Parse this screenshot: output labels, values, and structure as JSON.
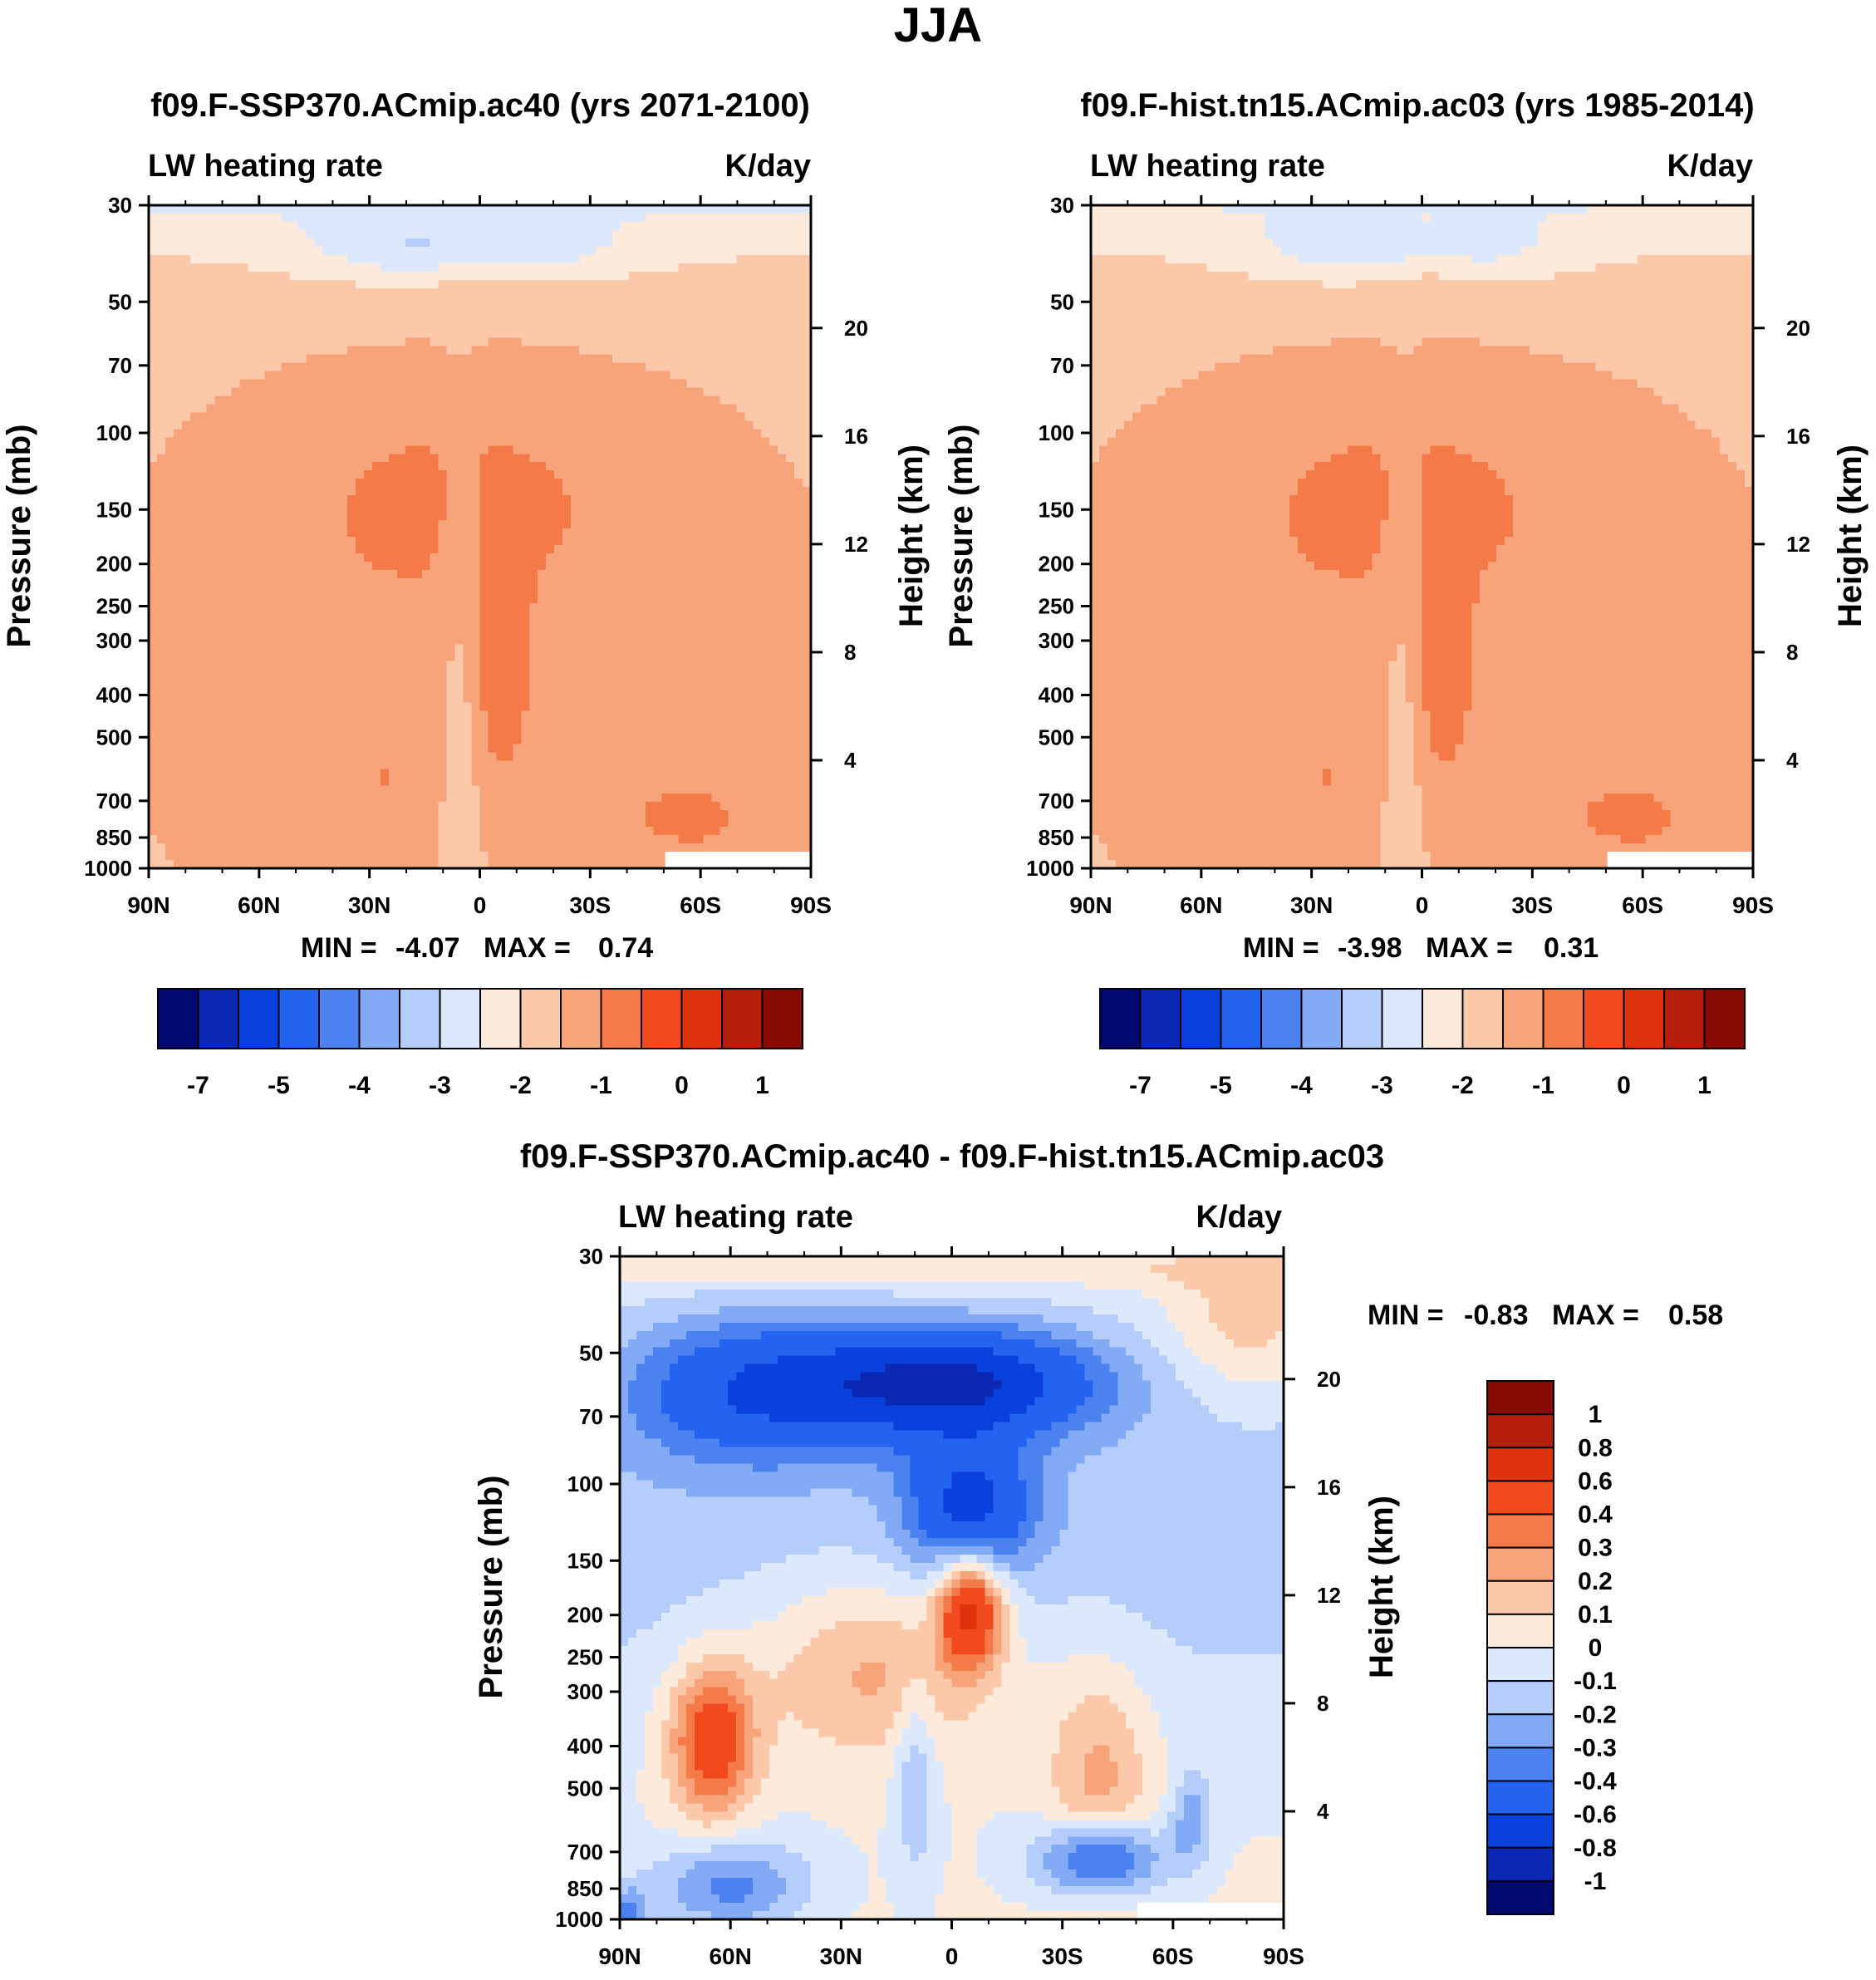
{
  "figure_title": "JJA",
  "colors": {
    "main_palette": [
      "#000a6e",
      "#0a28b4",
      "#0a41dc",
      "#2462f0",
      "#4b82f0",
      "#82aaf5",
      "#b4cdfa",
      "#dce9fc",
      "#fdeadb",
      "#fbc9aa",
      "#f8a47a",
      "#f47a4a",
      "#f04a1e",
      "#e0320c",
      "#b41e0a",
      "#870a05"
    ],
    "diff_palette": [
      "#000a6e",
      "#0a28b4",
      "#0a41dc",
      "#2462f0",
      "#4b82f0",
      "#82aaf5",
      "#b4cdfa",
      "#dce9fc",
      "#fdeadb",
      "#fbc9aa",
      "#f8a47a",
      "#f47a4a",
      "#f04a1e",
      "#e0320c",
      "#b41e0a",
      "#870a05"
    ]
  },
  "chart_data": [
    {
      "type": "heatmap",
      "id": "future",
      "title": "f09.F-SSP370.ACmip.ac40 (yrs 2071-2100)",
      "left_label": "LW heating rate",
      "right_label": "K/day",
      "xlabel": "",
      "ylabel": "Pressure (mb)",
      "y2label": "Height (km)",
      "x_ticks": [
        "90N",
        "60N",
        "30N",
        "0",
        "30S",
        "60S",
        "90S"
      ],
      "x_values": [
        90,
        60,
        30,
        0,
        -30,
        -60,
        -90
      ],
      "y_ticks": [
        30,
        50,
        70,
        100,
        150,
        200,
        250,
        300,
        400,
        500,
        700,
        850,
        1000
      ],
      "y_tick_labels": [
        "30",
        "50",
        "70",
        "100",
        "150",
        "200",
        "250",
        "300",
        "400",
        "500",
        "700",
        "850",
        "1000"
      ],
      "y2_ticks": [
        20,
        16,
        12,
        8,
        4
      ],
      "y2_tick_labels": [
        "20",
        "16",
        "12",
        "8",
        "4"
      ],
      "ylim": [
        1000,
        30
      ],
      "min_label": "MIN =",
      "min_value": "-4.07",
      "max_label": "MAX =",
      "max_value": "0.74",
      "colorbar_levels": [
        "-7",
        "-5",
        "-4",
        "-3",
        "-2",
        "-1",
        "0",
        "1"
      ],
      "field_kind": "base",
      "field_params": {
        "strat": 1.0,
        "lowbias": 0.0
      }
    },
    {
      "type": "heatmap",
      "id": "historical",
      "title": "f09.F-hist.tn15.ACmip.ac03 (yrs 1985-2014)",
      "left_label": "LW heating rate",
      "right_label": "K/day",
      "xlabel": "",
      "ylabel": "Pressure (mb)",
      "y2label": "Height (km)",
      "x_ticks": [
        "90N",
        "60N",
        "30N",
        "0",
        "30S",
        "60S",
        "90S"
      ],
      "x_values": [
        90,
        60,
        30,
        0,
        -30,
        -60,
        -90
      ],
      "y_ticks": [
        30,
        50,
        70,
        100,
        150,
        200,
        250,
        300,
        400,
        500,
        700,
        850,
        1000
      ],
      "y_tick_labels": [
        "30",
        "50",
        "70",
        "100",
        "150",
        "200",
        "250",
        "300",
        "400",
        "500",
        "700",
        "850",
        "1000"
      ],
      "y2_ticks": [
        20,
        16,
        12,
        8,
        4
      ],
      "y2_tick_labels": [
        "20",
        "16",
        "12",
        "8",
        "4"
      ],
      "ylim": [
        1000,
        30
      ],
      "min_label": "MIN =",
      "min_value": "-3.98",
      "max_label": "MAX =",
      "max_value": "0.31",
      "colorbar_levels": [
        "-7",
        "-5",
        "-4",
        "-3",
        "-2",
        "-1",
        "0",
        "1"
      ],
      "field_kind": "base",
      "field_params": {
        "strat": 0.92,
        "lowbias": 0.0
      }
    },
    {
      "type": "heatmap",
      "id": "difference",
      "title": "f09.F-SSP370.ACmip.ac40 - f09.F-hist.tn15.ACmip.ac03",
      "left_label": "LW heating rate",
      "right_label": "K/day",
      "xlabel": "",
      "ylabel": "Pressure (mb)",
      "y2label": "Height (km)",
      "x_ticks": [
        "90N",
        "60N",
        "30N",
        "0",
        "30S",
        "60S",
        "90S"
      ],
      "x_values": [
        90,
        60,
        30,
        0,
        -30,
        -60,
        -90
      ],
      "y_ticks": [
        30,
        50,
        70,
        100,
        150,
        200,
        250,
        300,
        400,
        500,
        700,
        850,
        1000
      ],
      "y_tick_labels": [
        "30",
        "50",
        "70",
        "100",
        "150",
        "200",
        "250",
        "300",
        "400",
        "500",
        "700",
        "850",
        "1000"
      ],
      "y2_ticks": [
        20,
        16,
        12,
        8,
        4
      ],
      "y2_tick_labels": [
        "20",
        "16",
        "12",
        "8",
        "4"
      ],
      "ylim": [
        1000,
        30
      ],
      "min_label": "MIN =",
      "min_value": "-0.83",
      "max_label": "MAX =",
      "max_value": "0.58",
      "colorbar_levels": [
        "1",
        "0.8",
        "0.6",
        "0.4",
        "0.3",
        "0.2",
        "0.1",
        "0",
        "-0.1",
        "-0.2",
        "-0.3",
        "-0.4",
        "-0.6",
        "-0.8",
        "-1"
      ],
      "field_kind": "diff",
      "field_params": {}
    }
  ]
}
